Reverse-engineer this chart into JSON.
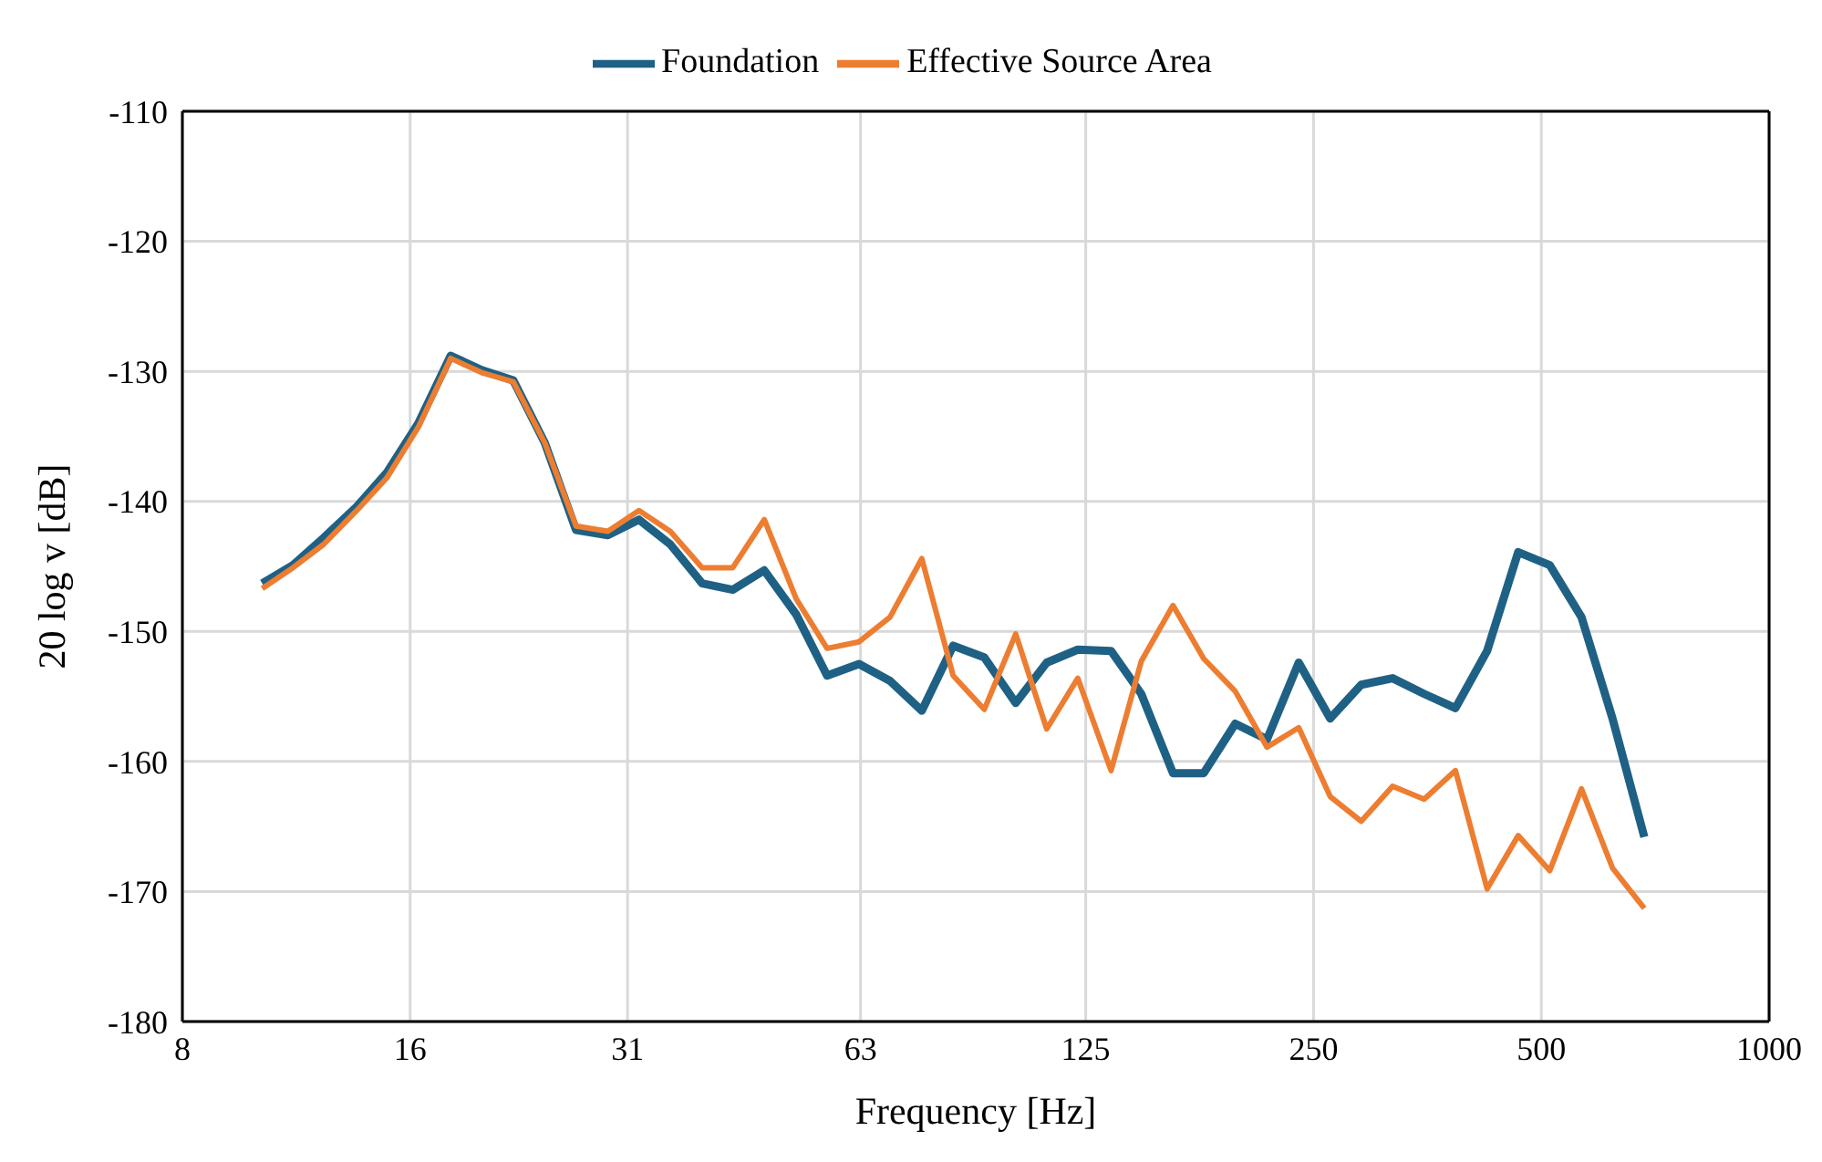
{
  "chart_data": {
    "type": "line",
    "xlabel": "Frequency [Hz]",
    "ylabel": "20 log v [dB]",
    "log": "x",
    "x": [
      10.2,
      11.2,
      12.3,
      13.6,
      14.9,
      16.4,
      18.1,
      19.9,
      21.9,
      24.1,
      26.5,
      29.2,
      32.1,
      35.3,
      38.9,
      42.7,
      47,
      51.8,
      56.9,
      62.7,
      68.9,
      75.9,
      83.5,
      91.8,
      101,
      111,
      122,
      135,
      148,
      163,
      179,
      197,
      217,
      239,
      263,
      289,
      318,
      350,
      385,
      424,
      466,
      513,
      565,
      621,
      684
    ],
    "series": [
      {
        "name": "Foundation",
        "color": "#1f6185",
        "values": [
          -146.3,
          -144.9,
          -142.8,
          -140.4,
          -137.8,
          -134.0,
          -128.8,
          -129.9,
          -130.7,
          -135.5,
          -142.2,
          -142.6,
          -141.4,
          -143.3,
          -146.3,
          -146.8,
          -145.3,
          -148.7,
          -153.4,
          -152.5,
          -153.8,
          -156.1,
          -151.1,
          -152.0,
          -155.5,
          -152.4,
          -151.4,
          -151.5,
          -154.8,
          -160.9,
          -160.9,
          -157.1,
          -158.3,
          -152.4,
          -156.7,
          -154.1,
          -153.6,
          -154.8,
          -155.9,
          -151.5,
          -143.9,
          -144.9,
          -148.9,
          -156.7,
          -165.8
        ]
      },
      {
        "name": "Effective Source Area",
        "color": "#ed7d31",
        "values": [
          -146.7,
          -145.1,
          -143.3,
          -140.7,
          -138.2,
          -134.3,
          -129.0,
          -130.1,
          -130.8,
          -135.5,
          -141.9,
          -142.3,
          -140.7,
          -142.3,
          -145.1,
          -145.1,
          -141.4,
          -147.5,
          -151.3,
          -150.8,
          -148.9,
          -144.4,
          -153.4,
          -156.0,
          -150.2,
          -157.5,
          -153.6,
          -160.7,
          -152.3,
          -148.0,
          -152.1,
          -154.6,
          -158.9,
          -157.4,
          -162.7,
          -164.6,
          -161.9,
          -162.9,
          -160.7,
          -169.8,
          -165.7,
          -168.4,
          -162.1,
          -168.2,
          -171.3
        ]
      }
    ],
    "xlim": [
      8,
      1000
    ],
    "xticks": [
      8,
      16,
      31,
      63,
      125,
      250,
      500,
      1000
    ],
    "ylim": [
      -180,
      -110
    ],
    "yticks": [
      -180,
      -170,
      -160,
      -150,
      -140,
      -130,
      -120,
      -110
    ],
    "grid": true,
    "legend": "top",
    "marker": "none",
    "line_style": "solid"
  }
}
